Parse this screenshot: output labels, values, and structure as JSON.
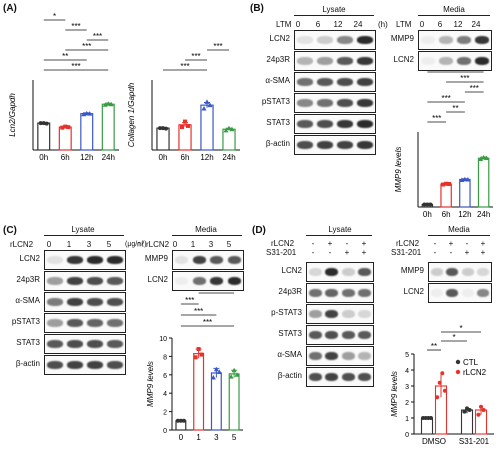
{
  "panels": {
    "A": {
      "label": "(A)"
    },
    "B": {
      "label": "(B)",
      "lysate_title": "Lysate",
      "media_title": "Media",
      "ltm_label": "LTM",
      "timepoints": [
        "0",
        "6",
        "12",
        "24"
      ],
      "unit": "(h)",
      "lysate_rows": [
        "LCN2",
        "24p3R",
        "α-SMA",
        "pSTAT3",
        "STAT3",
        "β-actin"
      ],
      "media_rows": [
        "MMP9",
        "LCN2"
      ]
    },
    "C": {
      "label": "(C)",
      "lysate_title": "Lysate",
      "media_title": "Media",
      "treat_label": "rLCN2",
      "doses": [
        "0",
        "1",
        "3",
        "5"
      ],
      "unit": "(μg/㎖)",
      "lysate_rows": [
        "LCN2",
        "24p3R",
        "α-SMA",
        "pSTAT3",
        "STAT3",
        "β-actin"
      ],
      "media_rows": [
        "MMP9",
        "LCN2"
      ]
    },
    "D": {
      "label": "(D)",
      "lysate_title": "Lysate",
      "media_title": "Media",
      "row1_label": "rLCN2",
      "row2_label": "S31-201",
      "row1_signs": [
        "-",
        "+",
        "-",
        "+"
      ],
      "row2_signs": [
        "-",
        "-",
        "+",
        "+"
      ],
      "lysate_rows": [
        "LCN2",
        "24p3R",
        "p-STAT3",
        "STAT3",
        "α-SMA",
        "β-actin"
      ],
      "media_rows": [
        "MMP9",
        "LCN2"
      ]
    }
  },
  "chart_data": [
    {
      "id": "A-lcn2",
      "type": "bar",
      "categories": [
        "0h",
        "6h",
        "12h",
        "24h"
      ],
      "values": [
        1.0,
        0.85,
        1.35,
        1.7
      ],
      "points": [
        [
          1.0,
          1.0,
          0.98
        ],
        [
          0.83,
          0.87,
          0.85
        ],
        [
          1.33,
          1.36,
          1.35
        ],
        [
          1.68,
          1.72,
          1.7
        ]
      ],
      "errors": [
        0.02,
        0.03,
        0.03,
        0.04
      ],
      "ylabel": "Lcn2/Gapdh",
      "ylim": [
        0,
        2.6
      ],
      "colors": [
        "#333333",
        "#e8312b",
        "#3a57c8",
        "#3a9b45"
      ],
      "sig": [
        {
          "from": 0,
          "to": 3,
          "label": "***"
        },
        {
          "from": 0,
          "to": 2,
          "label": "**"
        },
        {
          "from": 1,
          "to": 3,
          "label": "***"
        },
        {
          "from": 2,
          "to": 3,
          "label": "***"
        },
        {
          "from": 1,
          "to": 2,
          "label": "***"
        },
        {
          "from": 0,
          "to": 1,
          "label": "*"
        }
      ]
    },
    {
      "id": "A-col",
      "type": "bar",
      "categories": [
        "0h",
        "6h",
        "12h",
        "24h"
      ],
      "values": [
        1.0,
        1.15,
        2.05,
        0.95
      ],
      "points": [
        [
          1.0,
          1.0,
          0.98
        ],
        [
          1.05,
          1.3,
          1.1
        ],
        [
          1.9,
          2.2,
          2.05
        ],
        [
          0.9,
          1.0,
          0.95
        ]
      ],
      "errors": [
        0.02,
        0.1,
        0.12,
        0.05
      ],
      "ylabel": "Collagen 1/Gapdh",
      "ylim": [
        0,
        3.2
      ],
      "colors": [
        "#333333",
        "#e8312b",
        "#3a57c8",
        "#3a9b45"
      ],
      "sig": [
        {
          "from": 0,
          "to": 2,
          "label": "***"
        },
        {
          "from": 1,
          "to": 2,
          "label": "***"
        },
        {
          "from": 2,
          "to": 3,
          "label": "***"
        }
      ]
    },
    {
      "id": "B-mmp9",
      "type": "bar",
      "categories": [
        "0h",
        "6h",
        "12h",
        "24h"
      ],
      "values": [
        1.0,
        9.2,
        11.0,
        19.5
      ],
      "points": [
        [
          1.0,
          1.0,
          1.0
        ],
        [
          9.0,
          9.3,
          9.2
        ],
        [
          10.8,
          11.1,
          11.0
        ],
        [
          19.2,
          19.8,
          19.6
        ]
      ],
      "errors": [
        0.1,
        0.3,
        0.3,
        0.5
      ],
      "ylabel": "MMP9 levels",
      "ylim": [
        0,
        30
      ],
      "colors": [
        "#333333",
        "#e8312b",
        "#3a57c8",
        "#3a9b45"
      ],
      "sig": [
        {
          "from": 0,
          "to": 1,
          "label": "***"
        },
        {
          "from": 1,
          "to": 2,
          "label": "**"
        },
        {
          "from": 0,
          "to": 2,
          "label": "***"
        },
        {
          "from": 2,
          "to": 3,
          "label": "***"
        },
        {
          "from": 1,
          "to": 3,
          "label": "***"
        },
        {
          "from": 0,
          "to": 3,
          "label": "***"
        }
      ]
    },
    {
      "id": "C-mmp9",
      "type": "bar",
      "categories": [
        "0",
        "1",
        "3",
        "5"
      ],
      "values": [
        1.0,
        8.3,
        6.2,
        6.1
      ],
      "points": [
        [
          1.0,
          1.0,
          1.0
        ],
        [
          7.9,
          8.8,
          8.2
        ],
        [
          5.7,
          6.6,
          6.3
        ],
        [
          5.8,
          6.5,
          6.0
        ]
      ],
      "errors": [
        0.05,
        0.5,
        0.5,
        0.4
      ],
      "ylabel": "MMP9 levels",
      "ylim": [
        0,
        10
      ],
      "yticks": [
        0,
        2,
        4,
        6,
        8,
        10
      ],
      "colors": [
        "#333333",
        "#e8312b",
        "#3a57c8",
        "#3a9b45"
      ],
      "sig": [
        {
          "from": 0,
          "to": 3,
          "label": "***"
        },
        {
          "from": 0,
          "to": 2,
          "label": "***"
        },
        {
          "from": 0,
          "to": 1,
          "label": "***"
        },
        {
          "from": 1,
          "to": 3,
          "label": "*"
        }
      ]
    },
    {
      "id": "D-mmp9",
      "type": "bar",
      "categories": [
        "DMSO",
        "S31-201"
      ],
      "series": [
        {
          "name": "CTL",
          "values": [
            1.0,
            1.5
          ]
        },
        {
          "name": "rLCN2",
          "values": [
            3.0,
            1.5
          ]
        }
      ],
      "points": [
        [
          [
            1.0,
            1.0,
            1.0,
            1.0
          ],
          [
            2.3,
            3.2,
            3.8,
            2.7
          ]
        ],
        [
          [
            1.4,
            1.6,
            1.5
          ],
          [
            1.2,
            1.7,
            1.5
          ]
        ]
      ],
      "errors": [
        [
          0.02,
          0.7
        ],
        [
          0.2,
          0.3
        ]
      ],
      "ylabel": "MMP9 levels",
      "ylim": [
        0,
        5
      ],
      "yticks": [
        0,
        1,
        2,
        3,
        4,
        5
      ],
      "colors": [
        "#333333",
        "#e8312b"
      ],
      "legend": [
        "CTL",
        "rLCN2"
      ],
      "sig": [
        {
          "from": 0,
          "to": 1,
          "label": "**"
        },
        {
          "from": 1,
          "to": 2,
          "label": "*"
        },
        {
          "from": 1,
          "to": 3,
          "label": "*"
        }
      ]
    }
  ]
}
